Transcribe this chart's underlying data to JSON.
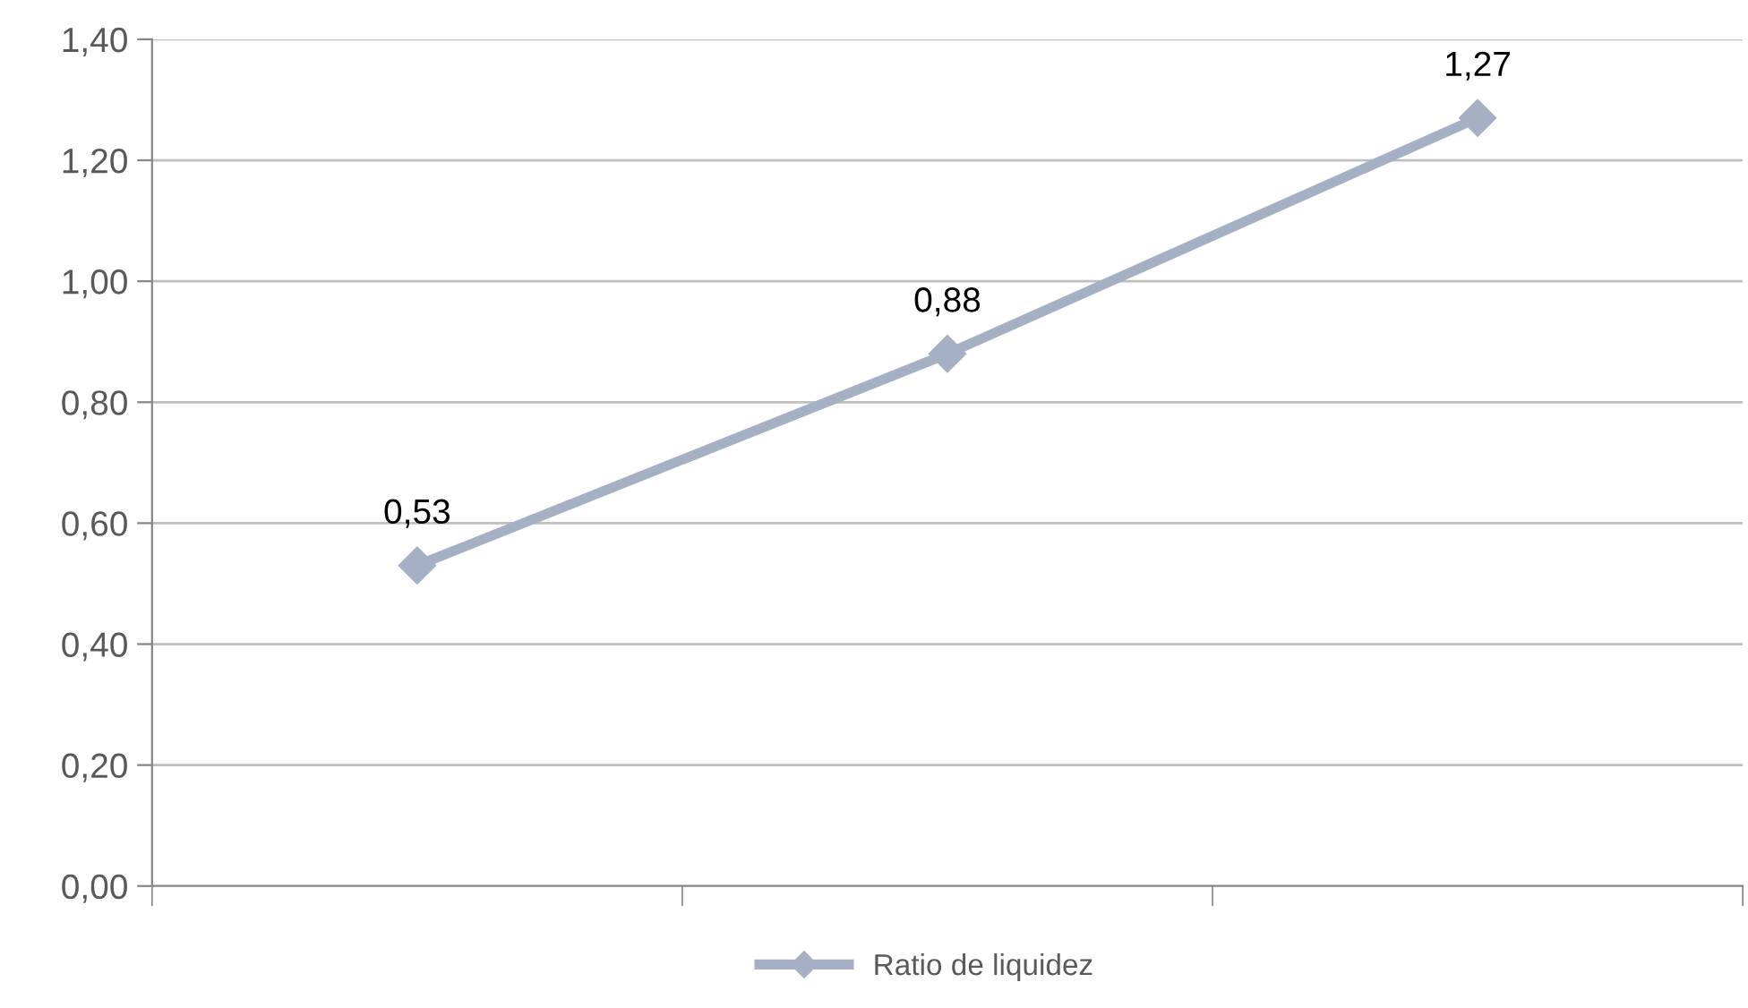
{
  "chart_data": {
    "type": "line",
    "categories": [
      null,
      null,
      null
    ],
    "series": [
      {
        "name": "Ratio de liquidez",
        "color": "#a5b0c4",
        "values": [
          0.53,
          0.88,
          1.27
        ],
        "value_labels": [
          "0,53",
          "0,88",
          "1,27"
        ]
      }
    ],
    "ylim": [
      0,
      1.4
    ],
    "yticks": [
      {
        "value": 0,
        "label": "0,00"
      },
      {
        "value": 0.2,
        "label": "0,20"
      },
      {
        "value": 0.4,
        "label": "0,40"
      },
      {
        "value": 0.6,
        "label": "0,60"
      },
      {
        "value": 0.8,
        "label": "0,80"
      },
      {
        "value": 1.0,
        "label": "1,00"
      },
      {
        "value": 1.2,
        "label": "1,20"
      },
      {
        "value": 1.4,
        "label": "1,40"
      }
    ],
    "grid": "y",
    "legend": "bottom",
    "marker": "diamond",
    "line_style": "solid"
  }
}
